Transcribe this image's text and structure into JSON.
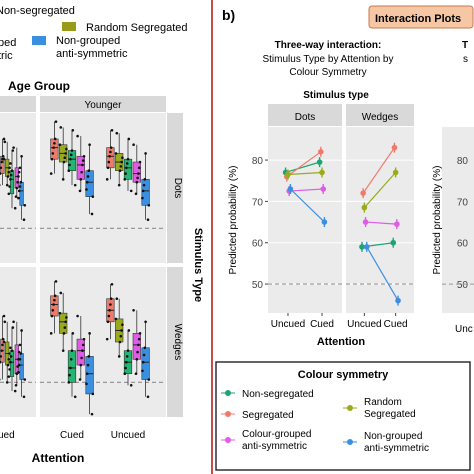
{
  "left_panel": {
    "legend_items": [
      {
        "label": "Non-segregated",
        "color": "#22b573"
      },
      {
        "label": "Random Segregated",
        "color": "#9a9a1a"
      },
      {
        "label": "Non-grouped anti-symmetric",
        "label_lines": [
          "Non-grouped",
          "anti-symmetric"
        ],
        "color": "#3b8fe0"
      }
    ],
    "legend_cut_fragments": [
      "ped",
      "tric"
    ],
    "facet_title": "Age Group",
    "strip_label": "Younger",
    "row_strips": [
      "Dots",
      "Wedges"
    ],
    "row_axis_title": "Stimulus Type",
    "x_tick_labels": [
      "ued",
      "Cued",
      "Uncued"
    ],
    "x_axis_title": "Attention"
  },
  "right_panel": {
    "panel_letter": "b)",
    "badge": "Interaction Plots",
    "title_lines": [
      "Three-way interaction:",
      "Stimulus Type by Attention by",
      "Colour Symmetry"
    ],
    "cut_title": "T",
    "cut_title_2": "s",
    "facet_title": "Stimulus type",
    "legend_title": "Colour symmetry",
    "legend_items": [
      {
        "label": "Non-segregated",
        "color": "#1ba572"
      },
      {
        "label": "Segregated",
        "color": "#f07a6a"
      },
      {
        "label": "Random Segregated",
        "label_lines": [
          "Random",
          "Segregated"
        ],
        "color": "#9aaa1c"
      },
      {
        "label": "Colour-grouped anti-symmetric",
        "label_lines": [
          "Colour-grouped",
          "anti-symmetric"
        ],
        "color": "#e05be8"
      },
      {
        "label": "Non-grouped anti-symmetric",
        "label_lines": [
          "Non-grouped",
          "anti-symmetric"
        ],
        "color": "#3b8fe0"
      }
    ]
  },
  "chart_data": [
    {
      "type": "line",
      "facets": [
        "Dots",
        "Wedges"
      ],
      "categories": [
        "Uncued",
        "Cued"
      ],
      "ylabel": "Predicted probability (%)",
      "xlabel": "Attention",
      "ylim": [
        43,
        88
      ],
      "yticks": [
        50,
        60,
        70,
        80
      ],
      "reference_line": 50,
      "series": [
        {
          "name": "Non-segregated",
          "color": "#1ba572",
          "Dots": [
            77,
            79.5
          ],
          "Wedges": [
            59,
            60
          ]
        },
        {
          "name": "Segregated",
          "color": "#f07a6a",
          "Dots": [
            76,
            82
          ],
          "Wedges": [
            72,
            83
          ]
        },
        {
          "name": "Random Segregated",
          "color": "#9aaa1c",
          "Dots": [
            76.5,
            77
          ],
          "Wedges": [
            68.5,
            77
          ]
        },
        {
          "name": "Colour-grouped anti-symmetric",
          "color": "#e05be8",
          "Dots": [
            72.5,
            73
          ],
          "Wedges": [
            65,
            64.5
          ]
        },
        {
          "name": "Non-grouped anti-symmetric",
          "color": "#3b8fe0",
          "Dots": [
            73,
            65
          ],
          "Wedges": [
            59,
            46
          ]
        }
      ]
    },
    {
      "type": "line",
      "yticks": [
        50,
        60,
        70,
        80
      ],
      "ylim": [
        43,
        88
      ],
      "ylabel": "Predicted probability (%)",
      "xlabel": ""
    },
    {
      "type": "box",
      "facets": [
        "Dots",
        "Wedges"
      ],
      "categories": [
        "Uncued",
        "Cued",
        "Uncued"
      ],
      "xlabel": "Attention",
      "ylim": [
        43,
        95
      ],
      "reference_line": 55,
      "groups": [
        {
          "name": "Segregated",
          "color": "#f07a6a"
        },
        {
          "name": "Random Segregated",
          "color": "#9aaa1c"
        },
        {
          "name": "Non-segregated",
          "color": "#22b573"
        },
        {
          "name": "Colour-grouped anti-symmetric",
          "color": "#e05be8"
        },
        {
          "name": "Non-grouped anti-symmetric",
          "color": "#3b8fe0"
        }
      ],
      "boxes": {
        "Dots": {
          "Uncued": [
            [
              70,
              74,
              78,
              80,
              86
            ],
            [
              70,
              73,
              76,
              79,
              85
            ],
            [
              62,
              67,
              72,
              75,
              82
            ],
            [
              66,
              69,
              73,
              76,
              83
            ],
            [
              58,
              63,
              68,
              71,
              80
            ]
          ],
          "Cued": [
            [
              74,
              79,
              83,
              86,
              92
            ],
            [
              72,
              78,
              81,
              84,
              90
            ],
            [
              70,
              75,
              79,
              82,
              89
            ],
            [
              68,
              72,
              77,
              80,
              87
            ],
            [
              60,
              66,
              71,
              75,
              84
            ]
          ],
          "Uncued2": [
            [
              72,
              76,
              80,
              83,
              89
            ],
            [
              70,
              75,
              78,
              81,
              88
            ],
            [
              68,
              72,
              76,
              79,
              86
            ],
            [
              67,
              71,
              74,
              78,
              84
            ],
            [
              58,
              63,
              68,
              72,
              81
            ]
          ]
        },
        "Wedges": {
          "Uncued": [
            [
              56,
              62,
              66,
              70,
              78
            ],
            [
              55,
              61,
              65,
              69,
              76
            ],
            [
              52,
              57,
              62,
              66,
              74
            ],
            [
              54,
              58,
              63,
              68,
              76
            ],
            [
              50,
              56,
              61,
              65,
              73
            ]
          ],
          "Cued": [
            [
              72,
              78,
              82,
              85,
              90
            ],
            [
              66,
              72,
              76,
              79,
              86
            ],
            [
              50,
              55,
              60,
              66,
              72
            ],
            [
              56,
              61,
              66,
              70,
              78
            ],
            [
              44,
              51,
              58,
              64,
              72
            ]
          ],
          "Uncued2": [
            [
              70,
              76,
              80,
              84,
              89
            ],
            [
              64,
              69,
              73,
              77,
              84
            ],
            [
              54,
              58,
              62,
              66,
              73
            ],
            [
              58,
              63,
              68,
              72,
              80
            ],
            [
              50,
              56,
              62,
              67,
              76
            ]
          ]
        }
      }
    }
  ]
}
